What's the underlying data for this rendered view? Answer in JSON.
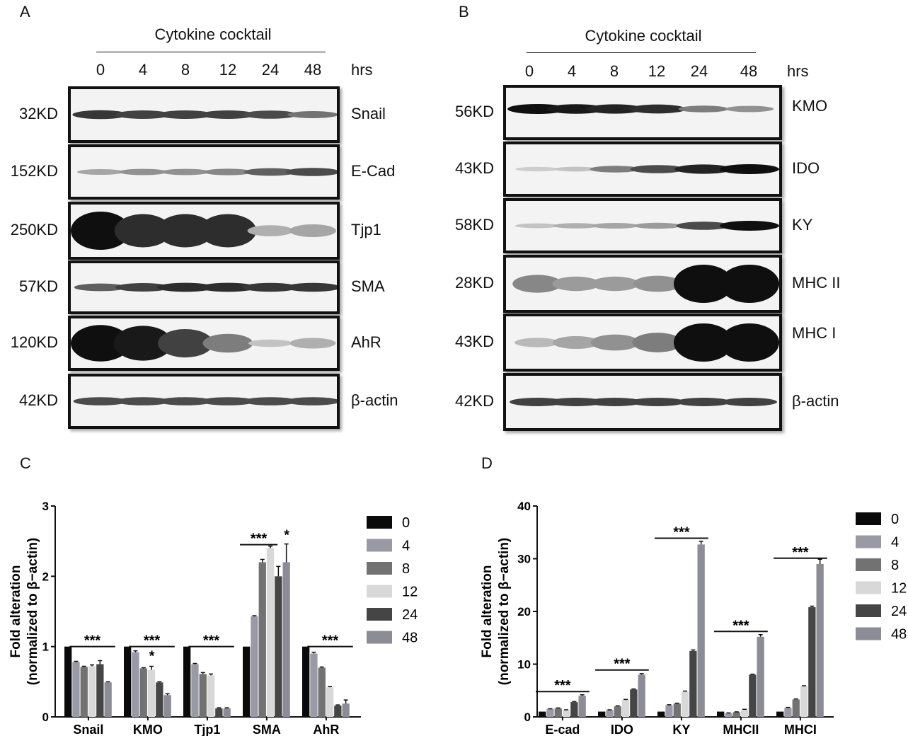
{
  "panels": {
    "A": "A",
    "B": "B",
    "C": "C",
    "D": "D"
  },
  "blot_header": {
    "title": "Cytokine cocktail",
    "timepoints": [
      "0",
      "4",
      "8",
      "12",
      "24",
      "48"
    ],
    "unit": "hrs"
  },
  "blot_A": {
    "rows": [
      {
        "kd": "32KD",
        "protein": "Snail",
        "band": [
          0.8,
          0.75,
          0.75,
          0.75,
          0.7,
          0.5
        ]
      },
      {
        "kd": "152KD",
        "protein": "E-Cad",
        "band": [
          0.25,
          0.35,
          0.35,
          0.4,
          0.6,
          0.7
        ]
      },
      {
        "kd": "250KD",
        "protein": "Tjp1",
        "band": [
          1.0,
          0.85,
          0.85,
          0.85,
          0.2,
          0.25
        ]
      },
      {
        "kd": "57KD",
        "protein": "SMA",
        "band": [
          0.6,
          0.75,
          0.85,
          0.85,
          0.8,
          0.8
        ]
      },
      {
        "kd": "120KD",
        "protein": "AhR",
        "band": [
          1.0,
          0.95,
          0.75,
          0.45,
          0.1,
          0.2
        ]
      },
      {
        "kd": "42KD",
        "protein": "β-actin",
        "band": [
          0.7,
          0.7,
          0.7,
          0.7,
          0.7,
          0.7
        ]
      }
    ]
  },
  "blot_B": {
    "rows": [
      {
        "kd": "56KD",
        "protein": "KMO",
        "band": [
          1.0,
          0.95,
          0.9,
          0.85,
          0.45,
          0.35
        ]
      },
      {
        "kd": "43KD",
        "protein": "IDO",
        "band": [
          0.05,
          0.1,
          0.45,
          0.7,
          0.9,
          1.0
        ]
      },
      {
        "kd": "58KD",
        "protein": "KY",
        "band": [
          0.1,
          0.2,
          0.25,
          0.3,
          0.7,
          1.0
        ]
      },
      {
        "kd": "28KD",
        "protein": "MHC II",
        "band": [
          0.4,
          0.3,
          0.3,
          0.35,
          1.0,
          1.0
        ]
      },
      {
        "kd": "43KD",
        "protein": "MHC I",
        "band": [
          0.15,
          0.25,
          0.35,
          0.45,
          1.0,
          1.0
        ]
      },
      {
        "kd": "42KD",
        "protein": "β-actin",
        "band": [
          0.75,
          0.75,
          0.75,
          0.75,
          0.75,
          0.75
        ]
      }
    ]
  },
  "colors": {
    "series": [
      "#0a0a0a",
      "#9a9aa6",
      "#727272",
      "#d8d8d8",
      "#454545",
      "#8c8c96"
    ]
  },
  "chart_data": [
    {
      "type": "bar",
      "panel": "C",
      "categories": [
        "Snail",
        "KMO",
        "Tjp1",
        "SMA",
        "AhR"
      ],
      "series": [
        {
          "name": "0",
          "values": [
            1.0,
            1.0,
            1.0,
            1.0,
            1.0
          ]
        },
        {
          "name": "4",
          "values": [
            0.78,
            0.92,
            0.75,
            1.43,
            0.9
          ]
        },
        {
          "name": "8",
          "values": [
            0.71,
            0.69,
            0.61,
            2.2,
            0.7
          ]
        },
        {
          "name": "12",
          "values": [
            0.72,
            0.67,
            0.59,
            2.4,
            0.42
          ]
        },
        {
          "name": "24",
          "values": [
            0.75,
            0.49,
            0.12,
            2.0,
            0.16
          ]
        },
        {
          "name": "48",
          "values": [
            0.49,
            0.31,
            0.12,
            2.2,
            0.19
          ]
        }
      ],
      "errors": [
        [
          0,
          0,
          0,
          0,
          0
        ],
        [
          0.01,
          0.02,
          0.01,
          0.01,
          0.02
        ],
        [
          0.01,
          0.01,
          0.02,
          0.04,
          0.01
        ],
        [
          0.02,
          0.05,
          0.02,
          0.03,
          0.01
        ],
        [
          0.05,
          0.01,
          0.01,
          0.14,
          0.01
        ],
        [
          0.01,
          0.02,
          0.01,
          0.26,
          0.05
        ]
      ],
      "ylabel_line1": "Fold alteration",
      "ylabel_line2": "(normalized to β−actin)",
      "ylim": [
        0,
        3
      ],
      "yticks": [
        "0",
        "1",
        "2",
        "3"
      ],
      "significance": [
        {
          "text": "***",
          "category": 0,
          "from": 1,
          "to": 5,
          "y": 1.0
        },
        {
          "text": "***",
          "category": 1,
          "from": 1,
          "to": 5,
          "y": 1.0
        },
        {
          "text": "*",
          "category": 1,
          "from": 3,
          "to": 3,
          "y": 0.78
        },
        {
          "text": "***",
          "category": 2,
          "from": 1,
          "to": 5,
          "y": 1.0
        },
        {
          "text": "***",
          "category": 3,
          "from": 0,
          "to": 3,
          "y": 2.45
        },
        {
          "text": "*",
          "category": 3,
          "from": 5,
          "to": 5,
          "y": 2.5
        },
        {
          "text": "***",
          "category": 4,
          "from": 1,
          "to": 5,
          "y": 1.0
        }
      ],
      "legend": "right"
    },
    {
      "type": "bar",
      "panel": "D",
      "categories": [
        "E-cad",
        "IDO",
        "KY",
        "MHCII",
        "MHCI"
      ],
      "series": [
        {
          "name": "0",
          "values": [
            1.0,
            1.0,
            1.0,
            1.0,
            1.0
          ]
        },
        {
          "name": "4",
          "values": [
            1.5,
            1.3,
            2.2,
            0.7,
            1.7
          ]
        },
        {
          "name": "8",
          "values": [
            1.6,
            2.0,
            2.5,
            0.9,
            3.3
          ]
        },
        {
          "name": "12",
          "values": [
            1.3,
            3.2,
            4.8,
            1.4,
            5.8
          ]
        },
        {
          "name": "24",
          "values": [
            2.8,
            5.2,
            12.5,
            8.0,
            20.8
          ]
        },
        {
          "name": "48",
          "values": [
            4.0,
            8.0,
            32.7,
            15.2,
            29.0
          ]
        }
      ],
      "errors": [
        [
          0,
          0,
          0,
          0,
          0
        ],
        [
          0.05,
          0.05,
          0.1,
          0.05,
          0.1
        ],
        [
          0.1,
          0.1,
          0.1,
          0.05,
          0.1
        ],
        [
          0.05,
          0.1,
          0.1,
          0.05,
          0.1
        ],
        [
          0.1,
          0.1,
          0.2,
          0.1,
          0.2
        ],
        [
          0.2,
          0.2,
          0.6,
          0.4,
          0.9
        ]
      ],
      "ylabel_line1": "Fold alteration",
      "ylabel_line2": "(normalized to β−actin)",
      "ylim": [
        0,
        40
      ],
      "yticks": [
        "0",
        "10",
        "20",
        "30",
        "40"
      ],
      "significance": [
        {
          "text": "***",
          "category": 0,
          "from": 0,
          "to": 5,
          "y": 4.8
        },
        {
          "text": "***",
          "category": 1,
          "from": 0,
          "to": 5,
          "y": 8.9
        },
        {
          "text": "***",
          "category": 2,
          "from": 0,
          "to": 5,
          "y": 33.9
        },
        {
          "text": "***",
          "category": 3,
          "from": 0,
          "to": 5,
          "y": 16.2
        },
        {
          "text": "***",
          "category": 4,
          "from": 0,
          "to": 5,
          "y": 30.1
        }
      ],
      "legend": "right"
    }
  ]
}
